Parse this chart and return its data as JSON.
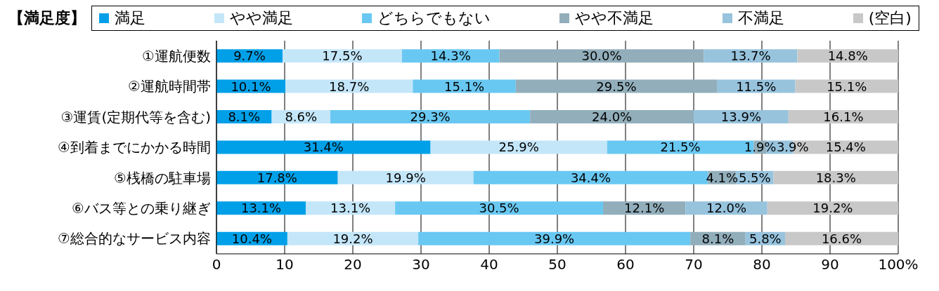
{
  "chart_data": {
    "type": "bar",
    "orientation": "horizontal",
    "stacked": true,
    "legend_title": "【満足度】",
    "legend": "top",
    "grid": "x",
    "categories": [
      "①運航便数",
      "②運航時間帯",
      "③運賃(定期代等を含む)",
      "④到着までにかかる時間",
      "⑤桟橋の駐車場",
      "⑥バス等との乗り継ぎ",
      "⑦総合的なサービス内容"
    ],
    "xlim": [
      0,
      100
    ],
    "xticks": [
      0,
      10,
      20,
      30,
      40,
      50,
      60,
      70,
      80,
      90,
      {
        "value": 100,
        "label": "100%"
      }
    ],
    "series": [
      {
        "name": "満足",
        "color": "#00a0e9",
        "values": [
          9.7,
          10.1,
          8.1,
          31.4,
          17.8,
          13.1,
          10.4
        ],
        "value_labels": [
          "9.7%",
          "10.1%",
          "8.1%",
          "31.4%",
          "17.8%",
          "13.1%",
          "10.4%"
        ]
      },
      {
        "name": "やや満足",
        "color": "#c4e6f9",
        "values": [
          17.5,
          18.7,
          8.6,
          25.9,
          19.9,
          13.1,
          19.2
        ],
        "value_labels": [
          "17.5%",
          "18.7%",
          "8.6%",
          "25.9%",
          "19.9%",
          "13.1%",
          "19.2%"
        ]
      },
      {
        "name": "どちらでもない",
        "color": "#69c8f2",
        "values": [
          14.3,
          15.1,
          29.3,
          21.5,
          34.4,
          30.5,
          39.9
        ],
        "value_labels": [
          "14.3%",
          "15.1%",
          "29.3%",
          "21.5%",
          "34.4%",
          "30.5%",
          "39.9%"
        ]
      },
      {
        "name": "やや不満足",
        "color": "#92aebb",
        "values": [
          30.0,
          29.5,
          24.0,
          1.9,
          4.1,
          12.1,
          8.1
        ],
        "value_labels": [
          "30.0%",
          "29.5%",
          "24.0%",
          "1.9%",
          "4.1%",
          "12.1%",
          "8.1%"
        ]
      },
      {
        "name": "不満足",
        "color": "#97c3dd",
        "values": [
          13.7,
          11.5,
          13.9,
          3.9,
          5.5,
          12.0,
          5.8
        ],
        "value_labels": [
          "13.7%",
          "11.5%",
          "13.9%",
          "3.9%",
          "5.5%",
          "12.0%",
          "5.8%"
        ]
      },
      {
        "name": "(空白)",
        "color": "#c8c8c8",
        "values": [
          14.8,
          15.1,
          16.1,
          15.4,
          18.3,
          19.2,
          16.6
        ],
        "value_labels": [
          "14.8%",
          "15.1%",
          "16.1%",
          "15.4%",
          "18.3%",
          "19.2%",
          "16.6%"
        ]
      }
    ]
  }
}
